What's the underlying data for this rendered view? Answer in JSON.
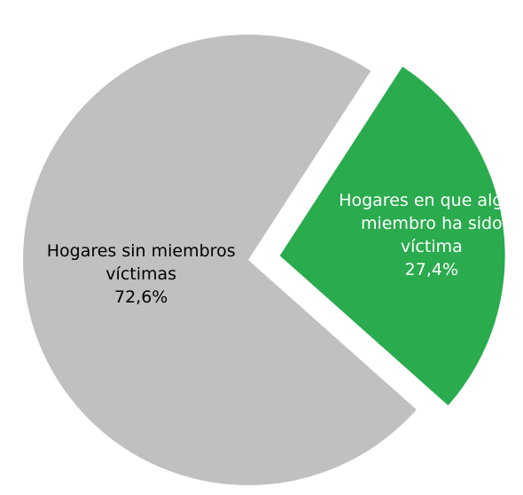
{
  "chart_data": {
    "type": "pie",
    "categories": [
      "Hogares en que algún miembro ha sido víctima",
      "Hogares sin miembros víctimas"
    ],
    "values": [
      27.4,
      72.6
    ],
    "value_labels": [
      "27,4%",
      "72,6%"
    ],
    "colors": [
      "#2aab4e",
      "#c0c0c0"
    ]
  }
}
